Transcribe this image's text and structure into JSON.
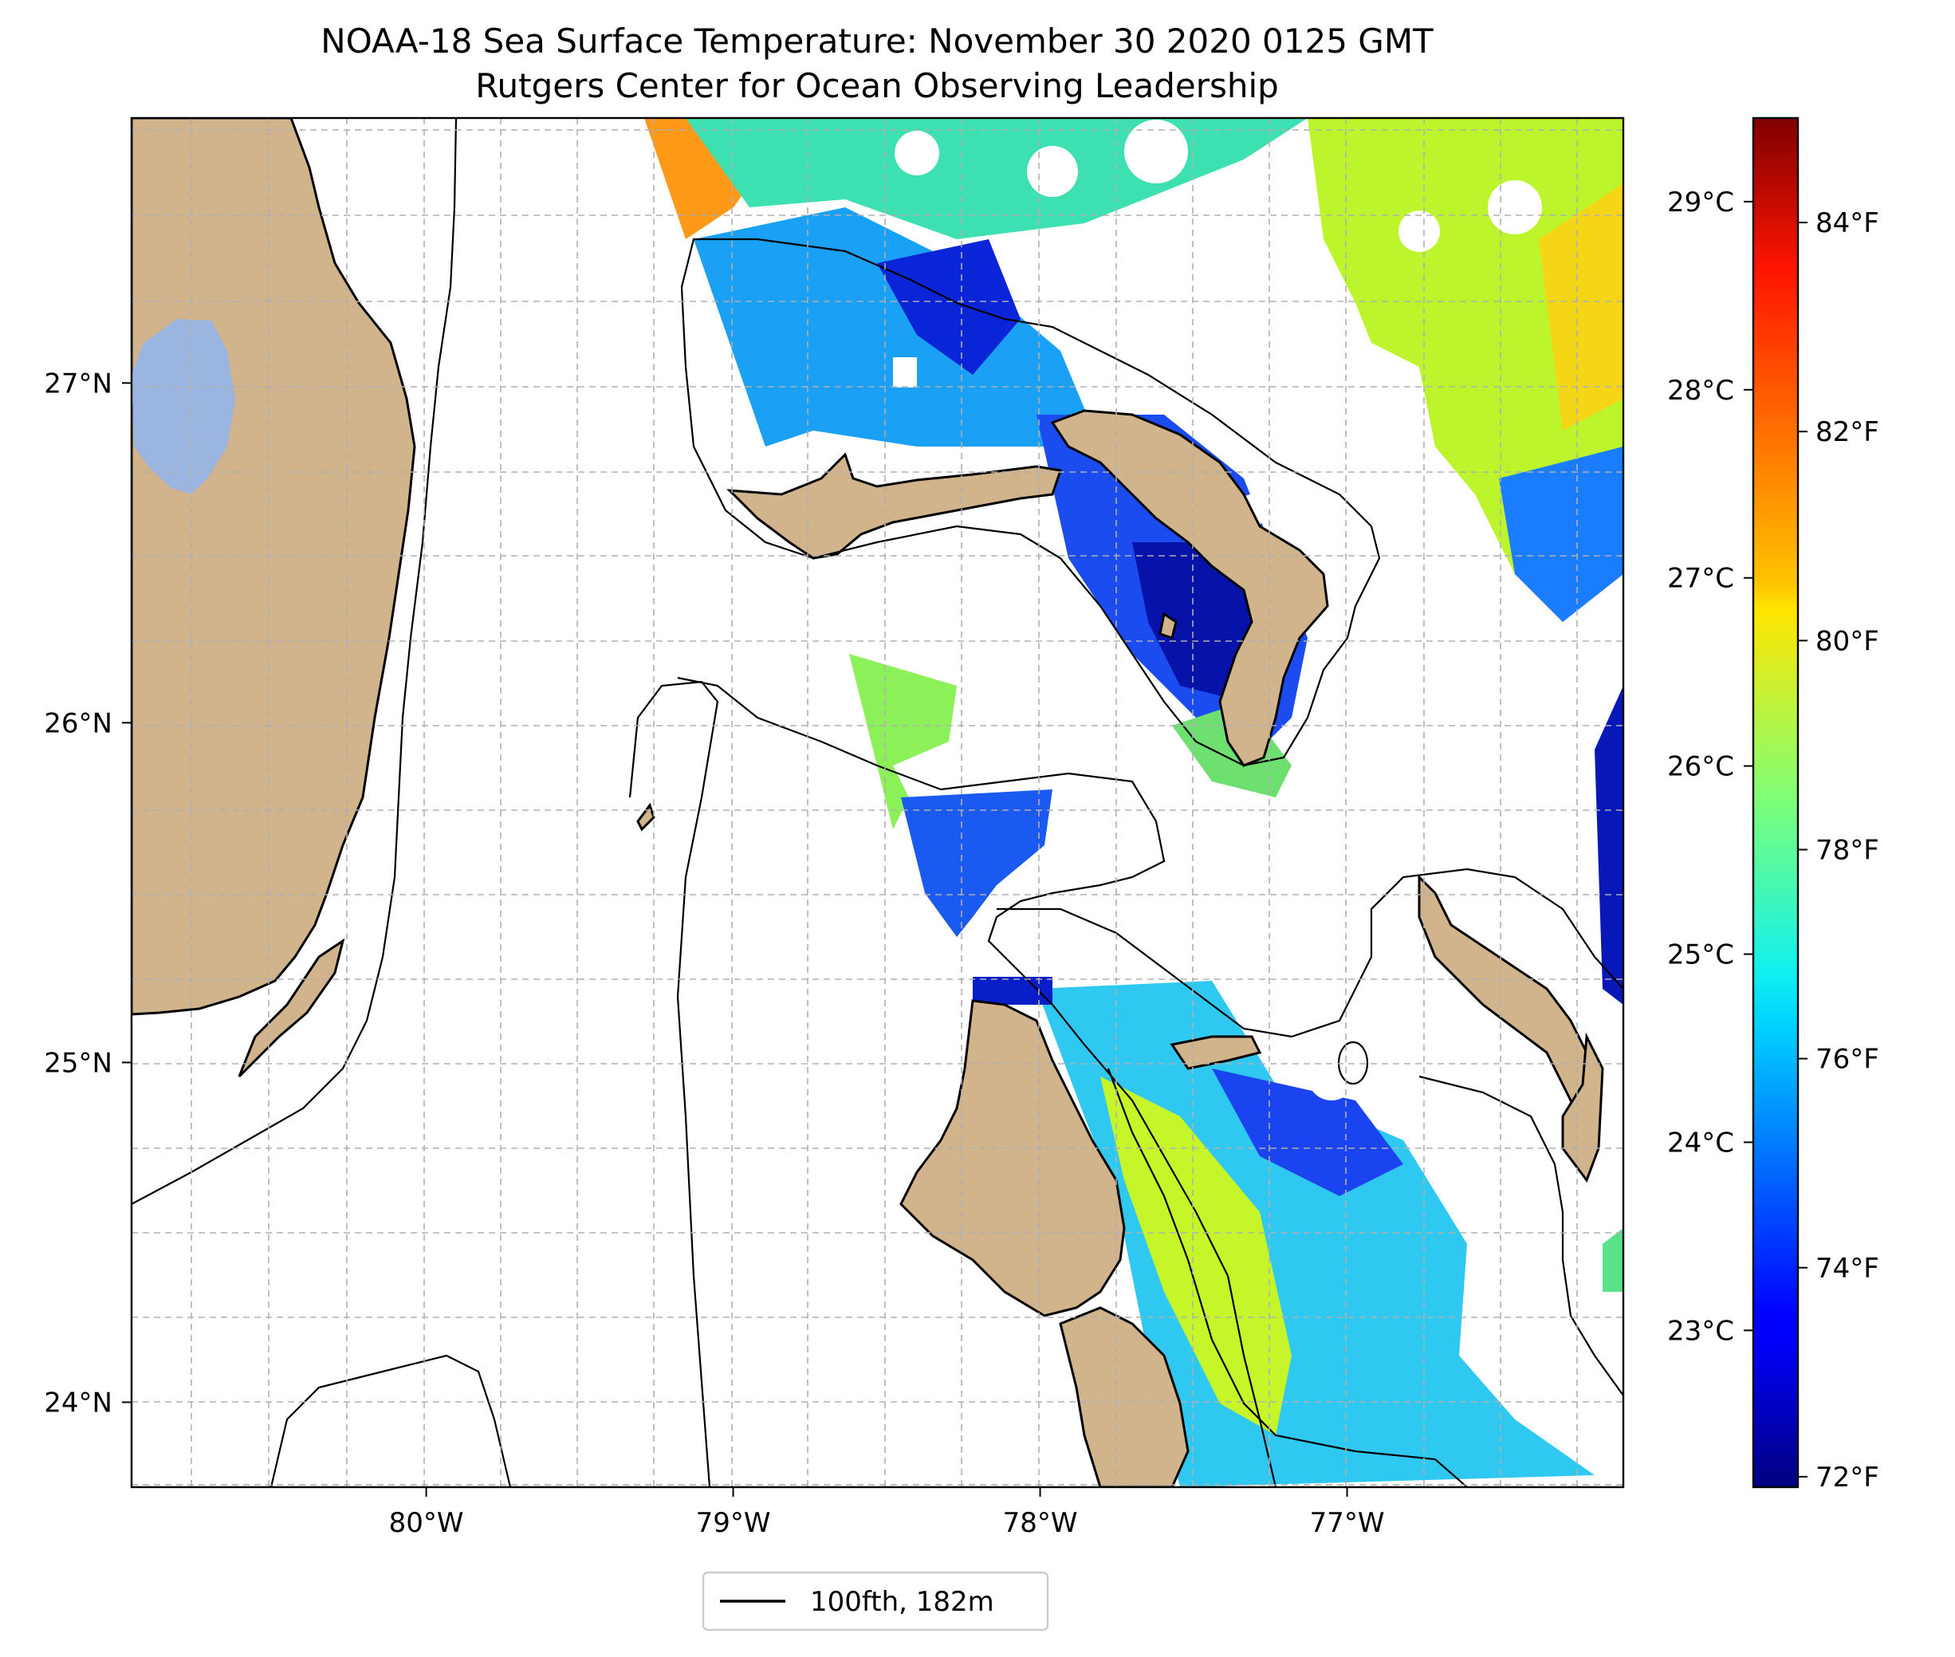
{
  "title": {
    "line1": "NOAA-18 Sea Surface Temperature: November 30 2020 0125 GMT",
    "line2": "Rutgers Center for Ocean Observing Leadership"
  },
  "map": {
    "lon_range": [
      -80.96,
      -76.1
    ],
    "lat_range": [
      23.75,
      27.78
    ],
    "lon_ticks": [
      {
        "value": -80,
        "label": "80°W"
      },
      {
        "value": -79,
        "label": "79°W"
      },
      {
        "value": -78,
        "label": "78°W"
      },
      {
        "value": -77,
        "label": "77°W"
      }
    ],
    "lat_ticks": [
      {
        "value": 24,
        "label": "24°N"
      },
      {
        "value": 25,
        "label": "25°N"
      },
      {
        "value": 26,
        "label": "26°N"
      },
      {
        "value": 27,
        "label": "27°N"
      }
    ],
    "gridlines": true,
    "land_color": "#d2b48c",
    "lake_color": "#9ab5e0",
    "contour_color": "#000000"
  },
  "colorbar": {
    "colormap": "jet",
    "celsius_ticks": [
      {
        "value": 23,
        "label": "23°C"
      },
      {
        "value": 24,
        "label": "24°C"
      },
      {
        "value": 25,
        "label": "25°C"
      },
      {
        "value": 26,
        "label": "26°C"
      },
      {
        "value": 27,
        "label": "27°C"
      },
      {
        "value": 28,
        "label": "28°C"
      },
      {
        "value": 29,
        "label": "29°C"
      }
    ],
    "fahrenheit_ticks": [
      {
        "value": 72,
        "label": "72°F"
      },
      {
        "value": 74,
        "label": "74°F"
      },
      {
        "value": 76,
        "label": "76°F"
      },
      {
        "value": 78,
        "label": "78°F"
      },
      {
        "value": 80,
        "label": "80°F"
      },
      {
        "value": 82,
        "label": "82°F"
      },
      {
        "value": 84,
        "label": "84°F"
      }
    ],
    "range_f": [
      71.9,
      85.0
    ]
  },
  "legend": {
    "label": "100fth, 182m",
    "line_color": "#000000",
    "placement": "bottom-center"
  }
}
